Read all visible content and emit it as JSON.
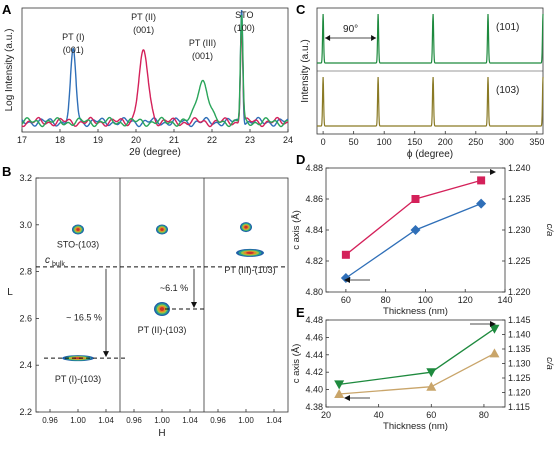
{
  "panel_letters": [
    "A",
    "B",
    "C",
    "D",
    "E"
  ],
  "chart_data": [
    {
      "panel": "A",
      "type": "line",
      "xlabel": "2θ (degree)",
      "ylabel": "Log Intensity (a.u.)",
      "xlim": [
        17,
        24
      ],
      "x_ticks": [
        "17",
        "18",
        "19",
        "20",
        "21",
        "22",
        "23",
        "24"
      ],
      "log_y": true,
      "series": [
        {
          "color": "#2f6fb8",
          "peaks": [
            {
              "center": 18.35,
              "height": 0.7,
              "width": 0.1
            },
            {
              "center": 22.78,
              "height": 1.18,
              "width": 0.04
            }
          ]
        },
        {
          "color": "#d4215a",
          "peaks": [
            {
              "center": 20.2,
              "height": 0.68,
              "width": 0.18
            },
            {
              "center": 22.78,
              "height": 0.98,
              "width": 0.045
            }
          ]
        },
        {
          "color": "#2aa55a",
          "peaks": [
            {
              "center": 21.75,
              "height": 0.42,
              "width": 0.21
            },
            {
              "center": 22.78,
              "height": 1.05,
              "width": 0.045
            }
          ]
        }
      ],
      "annotations": [
        {
          "x": 18.35,
          "lines": [
            "PT (I)",
            "(001)"
          ]
        },
        {
          "x": 20.2,
          "lines": [
            "PT (II)",
            "(001)"
          ]
        },
        {
          "x": 21.75,
          "lines": [
            "PT (III)",
            "(001)"
          ]
        },
        {
          "x": 22.85,
          "lines": [
            "STO",
            "(100)"
          ]
        }
      ]
    },
    {
      "panel": "C",
      "type": "line",
      "xlabel": "ϕ (degree)",
      "ylabel": "Intensity (a.u.)",
      "xlim": [
        -10,
        360
      ],
      "x_ticks": [
        "0",
        "50",
        "100",
        "150",
        "200",
        "250",
        "300",
        "350"
      ],
      "x_tick_values": [
        0,
        50,
        100,
        150,
        200,
        250,
        300,
        350
      ],
      "peak_positions": [
        0,
        90,
        180,
        270,
        360
      ],
      "rows": [
        {
          "label": "(101)",
          "color": "#1e8a3e"
        },
        {
          "label": "(103)",
          "color": "#8a7a25"
        }
      ],
      "spacing_label": "90°"
    },
    {
      "panel": "B",
      "type": "heatmap",
      "xlabel": "H",
      "ylabel": "L",
      "ylim": [
        2.2,
        3.2
      ],
      "y_ticks": [
        "2.2",
        "2.4",
        "2.6",
        "2.8",
        "3.0",
        "3.2"
      ],
      "y_tick_values": [
        2.2,
        2.4,
        2.6,
        2.8,
        3.0,
        3.2
      ],
      "x_ticks": [
        "0.96",
        "1.00",
        "1.04"
      ],
      "x_tick_values": [
        0.96,
        1.0,
        1.04
      ],
      "c_bulk": 2.82,
      "c_bulk_label": "c",
      "c_bulk_sub": "bulk",
      "subpanels": [
        {
          "film_label": "PT (I)-(103)",
          "sto_label": "STO-(103)",
          "sto_L": 2.98,
          "film_L": 2.43,
          "strain_label": "~ 16.5 %"
        },
        {
          "film_label": "PT (II)-(103)",
          "sto_label": "",
          "sto_L": 2.98,
          "film_L": 2.64,
          "strain_label": "~6.1 %"
        },
        {
          "film_label": "PT (III)-(103)",
          "sto_label": "",
          "sto_L": 2.99,
          "film_L": 2.88,
          "strain_label": ""
        }
      ]
    },
    {
      "panel": "D",
      "type": "line",
      "xlabel": "Thickness (nm)",
      "ylabel": "c axis (Å)",
      "ylabel_right": "c/a",
      "xlim": [
        50,
        140
      ],
      "ylim": [
        4.8,
        4.88
      ],
      "ylim_right": [
        1.22,
        1.24
      ],
      "x_ticks": [
        "60",
        "80",
        "100",
        "120",
        "140"
      ],
      "x_tick_values": [
        60,
        80,
        100,
        120,
        140
      ],
      "y_ticks": [
        "4.80",
        "4.82",
        "4.84",
        "4.86",
        "4.88"
      ],
      "y_tick_values": [
        4.8,
        4.82,
        4.84,
        4.86,
        4.88
      ],
      "y_ticks_right": [
        "1.220",
        "1.225",
        "1.230",
        "1.235",
        "1.240"
      ],
      "y_tick_values_right": [
        1.22,
        1.225,
        1.23,
        1.235,
        1.24
      ],
      "series": [
        {
          "axis": "right",
          "color": "#d4215a",
          "marker": "square",
          "x": [
            60,
            95,
            128
          ],
          "y": [
            1.226,
            1.235,
            1.238
          ]
        },
        {
          "axis": "left",
          "color": "#2f6fb8",
          "marker": "diamond",
          "x": [
            60,
            95,
            128
          ],
          "y": [
            4.809,
            4.84,
            4.857
          ]
        }
      ]
    },
    {
      "panel": "E",
      "type": "line",
      "xlabel": "Thickness (nm)",
      "ylabel": "c axis (Å)",
      "ylabel_right": "c/a",
      "xlim": [
        20,
        88
      ],
      "ylim": [
        4.38,
        4.48
      ],
      "ylim_right": [
        1.115,
        1.145
      ],
      "x_ticks": [
        "20",
        "40",
        "60",
        "80"
      ],
      "x_tick_values": [
        20,
        40,
        60,
        80
      ],
      "y_ticks": [
        "4.38",
        "4.40",
        "4.42",
        "4.44",
        "4.46",
        "4.48"
      ],
      "y_tick_values": [
        4.38,
        4.4,
        4.42,
        4.44,
        4.46,
        4.48
      ],
      "y_ticks_right": [
        "1.115",
        "1.120",
        "1.125",
        "1.130",
        "1.135",
        "1.140",
        "1.145"
      ],
      "y_tick_values_right": [
        1.115,
        1.12,
        1.125,
        1.13,
        1.135,
        1.14,
        1.145
      ],
      "series": [
        {
          "axis": "left",
          "color": "#1e8a3e",
          "marker": "triangle-down",
          "x": [
            25,
            60,
            84
          ],
          "y": [
            4.406,
            4.42,
            4.47
          ]
        },
        {
          "axis": "right",
          "color": "#c9a56a",
          "marker": "triangle-up",
          "x": [
            25,
            60,
            84
          ],
          "y": [
            1.1195,
            1.122,
            1.1335
          ]
        }
      ]
    }
  ]
}
